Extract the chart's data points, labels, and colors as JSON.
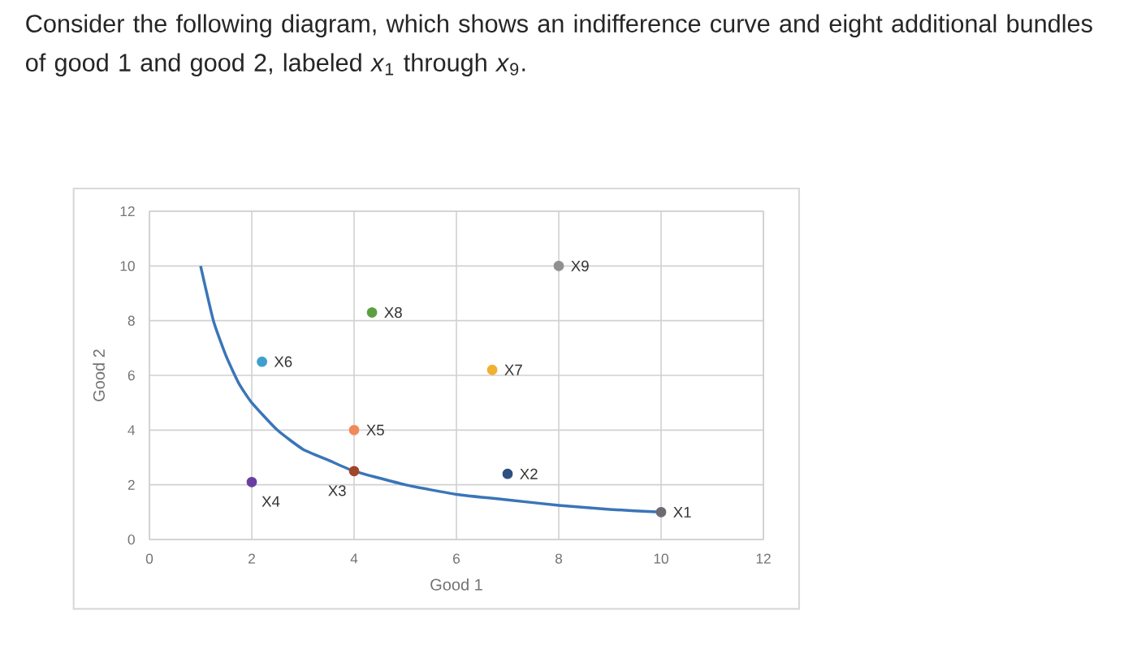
{
  "chart_data": {
    "type": "scatter",
    "title": "Consider the following diagram, which shows an indifference curve and eight additional bundles of good 1 and good 2, labeled *x*$_{1}$ through *x*$_{9}$.",
    "xlabel": "Good 1",
    "ylabel": "Good 2",
    "xlim": [
      0,
      12
    ],
    "ylim": [
      0,
      12
    ],
    "xticks": [
      0,
      2,
      4,
      6,
      8,
      10,
      12
    ],
    "yticks": [
      0,
      2,
      4,
      6,
      8,
      10,
      12
    ],
    "grid": true,
    "legend": false,
    "marker": "circle",
    "series": [
      {
        "type": "line",
        "marker": "none",
        "color": "#3a75b8",
        "x": [
          1,
          1.25,
          1.5,
          1.75,
          2,
          2.5,
          3,
          3.5,
          4,
          5,
          6,
          7,
          8,
          9,
          10
        ],
        "values": [
          10,
          8,
          6.7,
          5.7,
          5,
          4,
          3.3,
          2.9,
          2.5,
          2,
          1.65,
          1.45,
          1.25,
          1.1,
          1
        ]
      },
      {
        "name": "X1",
        "color": "#6b6b72",
        "x": [
          10
        ],
        "values": [
          1
        ]
      },
      {
        "name": "X2",
        "color": "#2f4f80",
        "x": [
          7
        ],
        "values": [
          2.4
        ]
      },
      {
        "name": "X3",
        "color": "#a0452a",
        "x": [
          4
        ],
        "values": [
          2.5
        ]
      },
      {
        "name": "X4",
        "color": "#6a3ea0",
        "x": [
          2
        ],
        "values": [
          2.1
        ]
      },
      {
        "name": "X5",
        "color": "#f08a5a",
        "x": [
          4
        ],
        "values": [
          4
        ]
      },
      {
        "name": "X6",
        "color": "#3fa0d0",
        "x": [
          2.2
        ],
        "values": [
          6.5
        ]
      },
      {
        "name": "X7",
        "color": "#f0b030",
        "x": [
          6.7
        ],
        "values": [
          6.2
        ]
      },
      {
        "name": "X8",
        "color": "#5aa040",
        "x": [
          4.35
        ],
        "values": [
          8.3
        ]
      },
      {
        "name": "X9",
        "color": "#909090",
        "x": [
          8
        ],
        "values": [
          10
        ]
      }
    ]
  }
}
